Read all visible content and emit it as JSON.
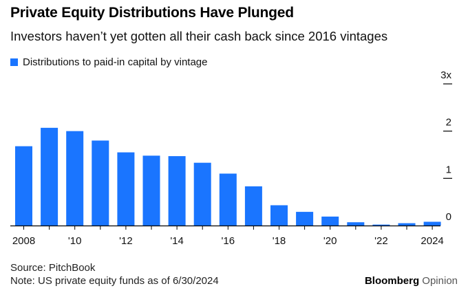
{
  "header": {
    "title": "Private Equity Distributions Have Plunged",
    "subtitle": "Investors haven’t yet gotten all their cash back since 2016 vintages"
  },
  "legend": {
    "label": "Distributions to paid-in capital by vintage",
    "color": "#1a75ff"
  },
  "colors": {
    "bar": "#1a75ff",
    "axis": "#000000"
  },
  "chart_data": {
    "type": "bar",
    "categories": [
      "2008",
      "2009",
      "2010",
      "2011",
      "2012",
      "2013",
      "2014",
      "2015",
      "2016",
      "2017",
      "2018",
      "2019",
      "2020",
      "2021",
      "2022",
      "2023",
      "2024"
    ],
    "x_tick_labels": [
      "2008",
      "",
      "'10",
      "",
      "'12",
      "",
      "'14",
      "",
      "'16",
      "",
      "'18",
      "",
      "'20",
      "",
      "'22",
      "",
      "2024"
    ],
    "series": [
      {
        "name": "Distributions to paid-in capital by vintage",
        "values": [
          1.68,
          2.07,
          2.0,
          1.8,
          1.55,
          1.48,
          1.47,
          1.33,
          1.1,
          0.83,
          0.43,
          0.29,
          0.19,
          0.07,
          0.02,
          0.05,
          0.08
        ]
      }
    ],
    "y_ticks": [
      0,
      1,
      2,
      3
    ],
    "y_tick_labels": [
      "0",
      "1",
      "2",
      "3x"
    ],
    "ylim": [
      0,
      3
    ],
    "y_axis_position": "right",
    "grid": false,
    "legend_position": "top-left"
  },
  "footer": {
    "source": "Source: PitchBook",
    "note": "Note: US private equity funds as of 6/30/2024"
  },
  "brand": {
    "primary": "Bloomberg",
    "secondary": "Opinion"
  }
}
